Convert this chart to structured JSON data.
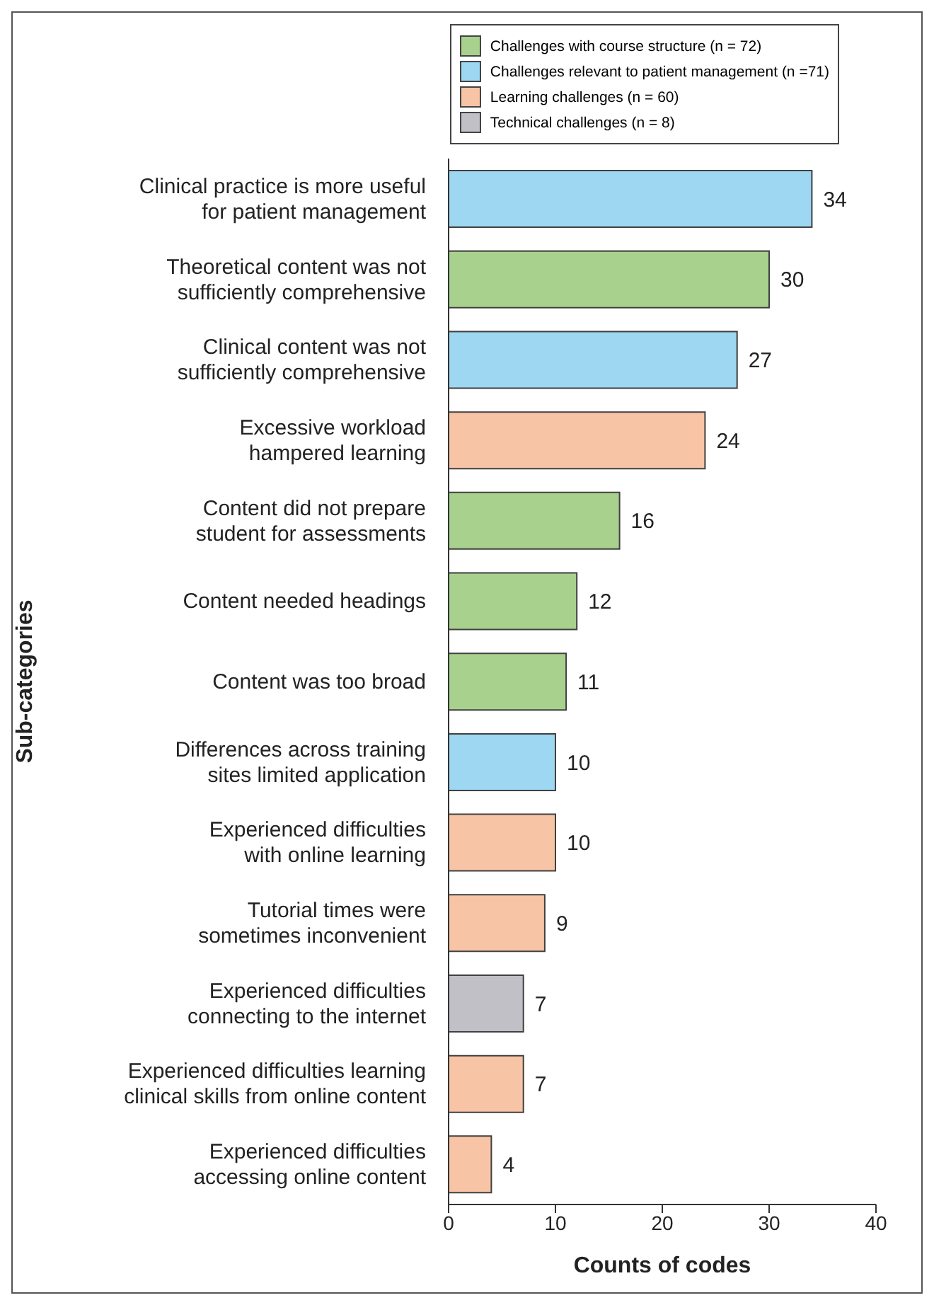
{
  "chart_data": {
    "type": "bar",
    "orientation": "horizontal",
    "stacked": true,
    "xlabel": "Counts of codes",
    "ylabel": "Sub-categories",
    "categories": [
      "Clinical practice is more useful\nfor patient management",
      "Theoretical content was not\nsufficiently comprehensive",
      "Clinical content was not\nsufficiently comprehensive",
      "Excessive workload\nhampered learning",
      "Content did not prepare\nstudent for assessments",
      "Content needed headings",
      "Content was too broad",
      "Differences across training\nsites limited application",
      "Experienced difficulties\nwith online learning",
      "Tutorial times were\nsometimes inconvenient",
      "Experienced difficulties\nconnecting to the internet",
      "Experienced difficulties learning\nclinical skills from online content",
      "Experienced difficulties\naccessing online content"
    ],
    "series": [
      {
        "name": "Challenges with course structure (n = 72)",
        "color": "#a9d18e",
        "values": [
          null,
          30,
          null,
          null,
          16,
          12,
          11,
          null,
          null,
          null,
          null,
          null,
          null
        ]
      },
      {
        "name": "Challenges relevant to patient management (n =71)",
        "color": "#9dd7f2",
        "values": [
          34,
          null,
          27,
          null,
          null,
          null,
          null,
          10,
          null,
          null,
          null,
          null,
          null
        ]
      },
      {
        "name": "Learning challenges (n = 60)",
        "color": "#f8c4a6",
        "values": [
          null,
          null,
          null,
          24,
          null,
          null,
          null,
          null,
          10,
          9,
          null,
          7,
          4
        ]
      },
      {
        "name": "Technical challenges (n = 8)",
        "color": "#c0c0c6",
        "values": [
          null,
          null,
          null,
          null,
          null,
          null,
          null,
          null,
          null,
          null,
          7,
          null,
          null
        ]
      }
    ],
    "xlim": [
      0,
      40
    ],
    "xticks": [
      0,
      10,
      20,
      30,
      40
    ],
    "data_labels": true,
    "grid": false,
    "legend": "top right"
  }
}
